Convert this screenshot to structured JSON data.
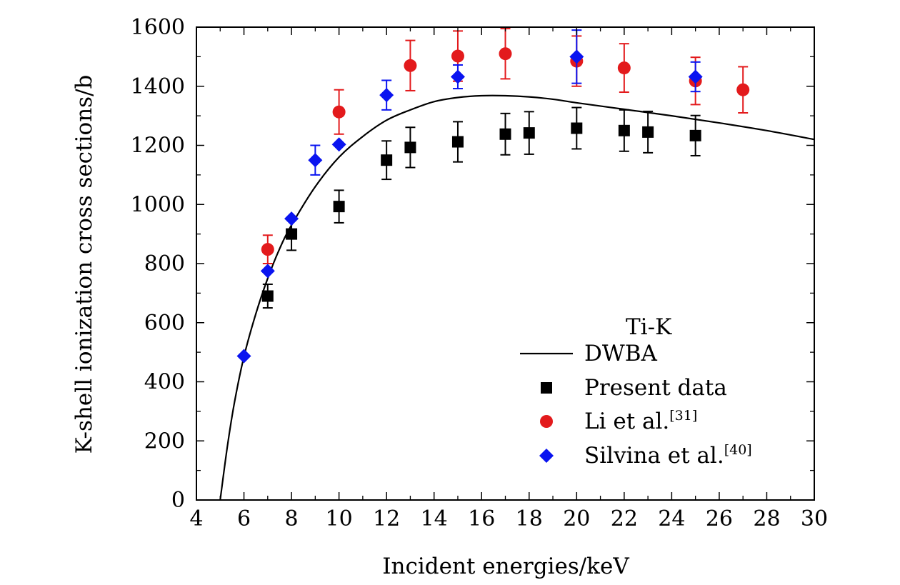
{
  "chart_data": {
    "type": "scatter",
    "title": "",
    "xlabel": "Incident energies/keV",
    "ylabel": "K-shell ionization cross sections/b",
    "xlim": [
      4,
      30
    ],
    "ylim": [
      0,
      1600
    ],
    "xticks": [
      4,
      6,
      8,
      10,
      12,
      14,
      16,
      18,
      20,
      22,
      24,
      26,
      28,
      30
    ],
    "yticks": [
      0,
      200,
      400,
      600,
      800,
      1000,
      1200,
      1400,
      1600
    ],
    "grid": false,
    "legend_title": "Ti-K",
    "legend_position": "bottom-right",
    "series": [
      {
        "name": "DWBA",
        "kind": "line",
        "color": "#000000",
        "points": [
          [
            5.0,
            0
          ],
          [
            5.3,
            180
          ],
          [
            5.6,
            330
          ],
          [
            6.0,
            485
          ],
          [
            6.5,
            630
          ],
          [
            7.0,
            750
          ],
          [
            7.5,
            850
          ],
          [
            8.0,
            930
          ],
          [
            9.0,
            1060
          ],
          [
            10.0,
            1160
          ],
          [
            11.0,
            1230
          ],
          [
            12.0,
            1285
          ],
          [
            13.0,
            1320
          ],
          [
            14.0,
            1348
          ],
          [
            15.0,
            1362
          ],
          [
            16.0,
            1368
          ],
          [
            17.0,
            1368
          ],
          [
            18.0,
            1364
          ],
          [
            19.0,
            1356
          ],
          [
            20.0,
            1344
          ],
          [
            22.0,
            1322
          ],
          [
            24.0,
            1300
          ],
          [
            26.0,
            1276
          ],
          [
            28.0,
            1250
          ],
          [
            30.0,
            1220
          ]
        ]
      },
      {
        "name": "Present data",
        "kind": "scatter",
        "marker": "square",
        "color": "#000000",
        "points": [
          {
            "x": 7,
            "y": 690,
            "err": 40
          },
          {
            "x": 8,
            "y": 900,
            "err": 55
          },
          {
            "x": 10,
            "y": 993,
            "err": 55
          },
          {
            "x": 12,
            "y": 1150,
            "err": 65
          },
          {
            "x": 13,
            "y": 1193,
            "err": 68
          },
          {
            "x": 15,
            "y": 1212,
            "err": 68
          },
          {
            "x": 17,
            "y": 1238,
            "err": 70
          },
          {
            "x": 18,
            "y": 1242,
            "err": 72
          },
          {
            "x": 20,
            "y": 1258,
            "err": 70
          },
          {
            "x": 22,
            "y": 1250,
            "err": 70
          },
          {
            "x": 23,
            "y": 1245,
            "err": 70
          },
          {
            "x": 25,
            "y": 1233,
            "err": 68
          }
        ]
      },
      {
        "name": "Li et al.",
        "superscript": "[31]",
        "kind": "scatter",
        "marker": "circle",
        "color": "#e31a1c",
        "points": [
          {
            "x": 7,
            "y": 848,
            "err": 48
          },
          {
            "x": 10,
            "y": 1313,
            "err": 75
          },
          {
            "x": 13,
            "y": 1470,
            "err": 85
          },
          {
            "x": 15,
            "y": 1502,
            "err": 85
          },
          {
            "x": 17,
            "y": 1510,
            "err": 85
          },
          {
            "x": 20,
            "y": 1485,
            "err": 85
          },
          {
            "x": 22,
            "y": 1462,
            "err": 82
          },
          {
            "x": 25,
            "y": 1418,
            "err": 80
          },
          {
            "x": 27,
            "y": 1388,
            "err": 78
          }
        ]
      },
      {
        "name": "Silvina et al.",
        "superscript": "[40]",
        "kind": "scatter",
        "marker": "diamond",
        "color": "#0a14f0",
        "points": [
          {
            "x": 6,
            "y": 487,
            "err": 0
          },
          {
            "x": 7,
            "y": 775,
            "err": 0
          },
          {
            "x": 8,
            "y": 952,
            "err": 0
          },
          {
            "x": 9,
            "y": 1150,
            "err": 50
          },
          {
            "x": 10,
            "y": 1203,
            "err": 0
          },
          {
            "x": 12,
            "y": 1370,
            "err": 50
          },
          {
            "x": 15,
            "y": 1432,
            "err": 40
          },
          {
            "x": 20,
            "y": 1500,
            "err": 90
          },
          {
            "x": 25,
            "y": 1432,
            "err": 50
          }
        ]
      }
    ]
  }
}
